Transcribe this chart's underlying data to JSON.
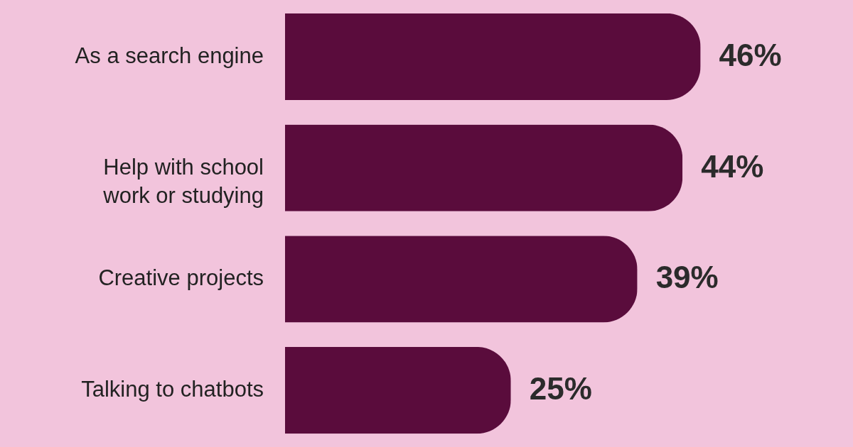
{
  "chart_data": {
    "type": "bar",
    "orientation": "horizontal",
    "categories": [
      "As a search engine",
      "Help with school work or studying",
      "Creative projects",
      "Talking to chatbots"
    ],
    "values": [
      46,
      44,
      39,
      25
    ],
    "color": "#5a0c3c",
    "value_labels": [
      "46%",
      "44%",
      "39%",
      "25%"
    ]
  }
}
